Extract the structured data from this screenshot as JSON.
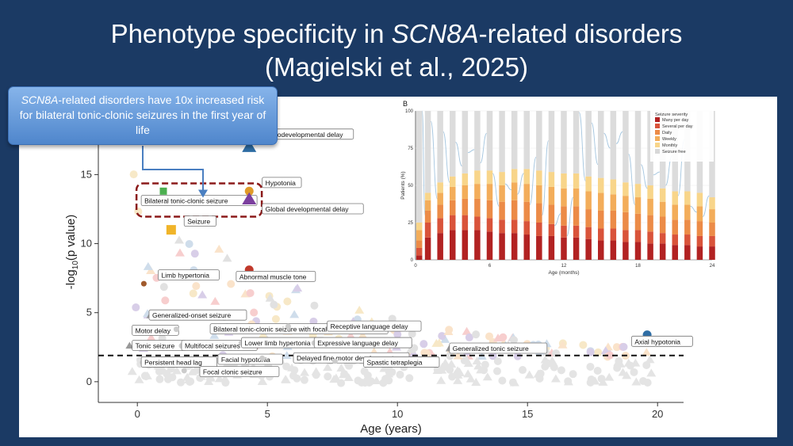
{
  "slide": {
    "title_line1_pre": "Phenotype specificity in ",
    "title_line1_gene": "SCN8A",
    "title_line1_post": "-related disorders",
    "title_line2": "(Magielski et al., 2025)"
  },
  "callout": {
    "gene": "SCN8A",
    "text": "-related disorders have 10x increased risk for bilateral tonic-clonic seizures in the first year of life"
  },
  "chart_data": [
    {
      "type": "scatter",
      "xlabel": "Age (years)",
      "ylabel_pre": "-log",
      "ylabel_sub": "10",
      "ylabel_post": "(p value)",
      "xlim": [
        -1.5,
        21
      ],
      "ylim": [
        -1.5,
        20.3
      ],
      "xticks": [
        0,
        5,
        10,
        15,
        20
      ],
      "yticks": [
        0,
        5,
        10,
        15
      ],
      "threshold": 1.9,
      "labeled_points": [
        {
          "label": "Neurodevelopmental delay",
          "x": 4.3,
          "y": 17.0,
          "shape": "triangle",
          "color": "#2e6da4",
          "size": 9,
          "lx": 4.7,
          "ly": 17.9
        },
        {
          "label": "Bilateral tonic-clonic seizure",
          "x": 1.0,
          "y": 13.8,
          "shape": "square",
          "color": "#4caf50",
          "size": 7,
          "lx": 0.15,
          "ly": 13.1,
          "highlight": true
        },
        {
          "label": "Hypotonia",
          "x": 4.3,
          "y": 13.8,
          "shape": "circle",
          "color": "#e09a28",
          "size": 9,
          "lx": 4.8,
          "ly": 14.4
        },
        {
          "label": "Global developmental delay",
          "x": 4.3,
          "y": 13.2,
          "shape": "triangle",
          "color": "#7b3f9e",
          "size": 9,
          "lx": 4.8,
          "ly": 12.5
        },
        {
          "label": "Seizure",
          "x": 1.3,
          "y": 11.0,
          "shape": "square",
          "color": "#f0b429",
          "size": 10,
          "lx": 1.8,
          "ly": 11.6
        },
        {
          "label": "Abnormal muscle tone",
          "x": 4.3,
          "y": 8.1,
          "shape": "circle",
          "color": "#c0392b",
          "size": 9,
          "lx": 3.8,
          "ly": 7.6
        },
        {
          "label": "Limb hypertonia",
          "x": 0.25,
          "y": 7.1,
          "shape": "circle",
          "color": "#a05a2c",
          "size": 5,
          "lx": 0.8,
          "ly": 7.7
        },
        {
          "label": "Axial hypotonia",
          "x": 19.6,
          "y": 3.4,
          "shape": "circle",
          "color": "#2e6da4",
          "size": 9,
          "lx": 19.0,
          "ly": 2.9
        },
        {
          "label": "Generalized-onset seizure",
          "x": 0.5,
          "y": 4.8,
          "shape": "triangle",
          "color": "#999999",
          "size": 5,
          "lx": 0.45,
          "ly": 4.8
        },
        {
          "label": "Motor delay",
          "x": 0.5,
          "y": 3.7,
          "shape": "triangle",
          "color": "#999999",
          "size": 5,
          "lx": -0.2,
          "ly": 3.7
        },
        {
          "label": "Bilateral tonic-clonic seizure with focal onset",
          "x": 1.5,
          "y": 3.8,
          "shape": "circle",
          "color": "#cccccc",
          "size": 5,
          "lx": 2.8,
          "ly": 3.8
        },
        {
          "label": "Receptive language delay",
          "x": 5.8,
          "y": 4.0,
          "shape": "circle",
          "color": "#cccccc",
          "size": 5,
          "lx": 7.3,
          "ly": 4.0
        },
        {
          "label": "Tonic seizure",
          "x": -0.3,
          "y": 2.6,
          "shape": "triangle",
          "color": "#999999",
          "size": 5,
          "lx": -0.2,
          "ly": 2.6
        },
        {
          "label": "Multifocal seizures",
          "x": 1.7,
          "y": 2.6,
          "shape": "circle",
          "color": "#cccccc",
          "size": 5,
          "lx": 1.7,
          "ly": 2.6
        },
        {
          "label": "Lower limb hypertonia",
          "x": 4.0,
          "y": 2.8,
          "shape": "circle",
          "color": "#cccccc",
          "size": 5,
          "lx": 4.0,
          "ly": 2.8
        },
        {
          "label": "Expressive language delay",
          "x": 6.8,
          "y": 2.8,
          "shape": "circle",
          "color": "#cccccc",
          "size": 5,
          "lx": 6.8,
          "ly": 2.8
        },
        {
          "label": "Generalized tonic seizure",
          "x": 12.0,
          "y": 2.4,
          "shape": "triangle",
          "color": "#999999",
          "size": 5,
          "lx": 12.0,
          "ly": 2.4
        },
        {
          "label": "Facial hypotonia",
          "x": 2.3,
          "y": 1.6,
          "shape": "circle",
          "color": "#cccccc",
          "size": 5,
          "lx": 3.1,
          "ly": 1.6
        },
        {
          "label": "Delayed fine motor development",
          "x": 4.8,
          "y": 1.7,
          "shape": "circle",
          "color": "#cccccc",
          "size": 5,
          "lx": 6.0,
          "ly": 1.7
        },
        {
          "label": "Spastic tetraplegia",
          "x": 7.6,
          "y": 1.5,
          "shape": "circle",
          "color": "#cccccc",
          "size": 5,
          "lx": 8.7,
          "ly": 1.4
        },
        {
          "label": "Persistent head lag",
          "x": 0.2,
          "y": 1.4,
          "shape": "circle",
          "color": "#cccccc",
          "size": 5,
          "lx": 0.15,
          "ly": 1.4
        },
        {
          "label": "Focal clonic seizure",
          "x": 1.8,
          "y": 0.8,
          "shape": "circle",
          "color": "#cccccc",
          "size": 5,
          "lx": 2.4,
          "ly": 0.7
        }
      ]
    },
    {
      "type": "bar",
      "panel_label": "B",
      "xlabel": "Age (months)",
      "ylabel": "Patients (%)",
      "xticks": [
        0,
        6,
        12,
        18,
        24
      ],
      "yticks": [
        0,
        25,
        50,
        75,
        100
      ],
      "legend_title": "Seizure severity",
      "legend_position": "top-right",
      "stack_order": [
        "Many per day",
        "Several per day",
        "Daily",
        "Weekly",
        "Monthly",
        "Seizure free"
      ],
      "colors": [
        "#b22222",
        "#d9533a",
        "#ec8b47",
        "#f3ad5a",
        "#f8d58a",
        "#d8d8d8"
      ],
      "months": [
        0.3,
        1,
        2,
        3,
        4,
        5,
        6,
        7,
        8,
        9,
        10,
        11,
        12,
        13,
        14,
        15,
        16,
        17,
        18,
        19,
        20,
        21,
        22,
        23,
        24
      ],
      "stacks": [
        [
          3,
          5,
          5,
          7,
          5,
          75
        ],
        [
          15,
          10,
          8,
          7,
          5,
          55
        ],
        [
          18,
          10,
          9,
          8,
          7,
          48
        ],
        [
          20,
          10,
          10,
          9,
          7,
          44
        ],
        [
          20,
          10,
          11,
          9,
          8,
          42
        ],
        [
          20,
          9,
          12,
          10,
          9,
          40
        ],
        [
          19,
          9,
          12,
          11,
          9,
          40
        ],
        [
          18,
          9,
          12,
          11,
          9,
          41
        ],
        [
          18,
          9,
          13,
          12,
          9,
          39
        ],
        [
          17,
          9,
          13,
          12,
          10,
          39
        ],
        [
          16,
          9,
          13,
          12,
          10,
          40
        ],
        [
          16,
          8,
          13,
          12,
          10,
          41
        ],
        [
          15,
          8,
          13,
          12,
          10,
          42
        ],
        [
          15,
          8,
          13,
          12,
          10,
          42
        ],
        [
          14,
          8,
          12,
          12,
          10,
          44
        ],
        [
          13,
          8,
          12,
          12,
          10,
          45
        ],
        [
          13,
          8,
          12,
          11,
          10,
          46
        ],
        [
          12,
          8,
          12,
          11,
          9,
          48
        ],
        [
          12,
          8,
          11,
          11,
          9,
          49
        ],
        [
          11,
          8,
          11,
          11,
          9,
          50
        ],
        [
          11,
          7,
          11,
          10,
          9,
          52
        ],
        [
          10,
          7,
          10,
          10,
          9,
          54
        ],
        [
          10,
          7,
          10,
          10,
          9,
          54
        ],
        [
          9,
          7,
          10,
          10,
          9,
          55
        ],
        [
          9,
          7,
          9,
          9,
          8,
          58
        ]
      ]
    }
  ]
}
